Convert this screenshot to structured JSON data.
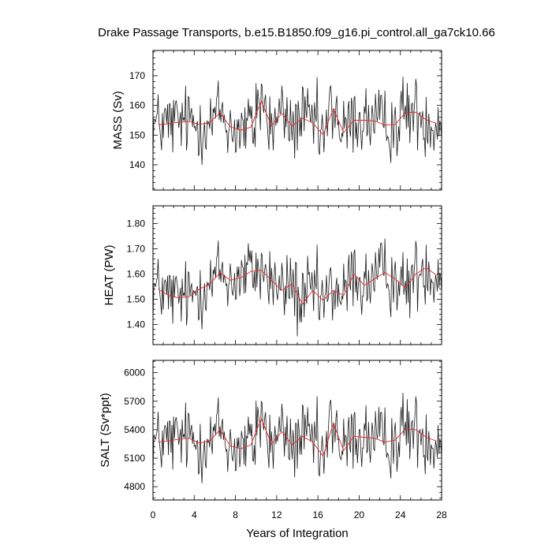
{
  "chart_data": {
    "type": "line",
    "title": "Drake Passage Transports, b.e15.B1850.f09_g16.pi_control.all_ga7ck10.66",
    "xlabel": "Years of Integration",
    "xlim": [
      0,
      28
    ],
    "xticks": [
      0,
      4,
      8,
      12,
      16,
      20,
      24,
      28
    ],
    "panels": [
      {
        "ylabel": "MASS (Sv)",
        "ylim": [
          131.5,
          178.5
        ],
        "yticks": [
          140,
          150,
          160,
          170
        ],
        "tick_labels": [
          "140",
          "150",
          "160",
          "170"
        ],
        "annual_mean": {
          "x": [
            0.5,
            1.5,
            2.5,
            3.5,
            4.5,
            5.5,
            6.5,
            7.5,
            8.5,
            9.5,
            10.5,
            11.5,
            12.5,
            13.5,
            14.5,
            15.5,
            16.5,
            17.5,
            18.5,
            19.5,
            20.5,
            21.5,
            22.5,
            23.5,
            24.5,
            25.5,
            26.5,
            27.5
          ],
          "values": [
            153.5,
            153.8,
            154.3,
            154.6,
            153.6,
            154.2,
            157.5,
            152.8,
            151.6,
            152.7,
            161.5,
            153.2,
            157.3,
            153.0,
            155.7,
            154.1,
            150.1,
            158.9,
            150.8,
            155.0,
            155.0,
            154.8,
            153.4,
            153.6,
            157.6,
            157.7,
            155.1,
            154.0
          ]
        }
      },
      {
        "ylabel": "HEAT (PW)",
        "ylim": [
          1.32,
          1.87
        ],
        "yticks": [
          1.4,
          1.5,
          1.6,
          1.7,
          1.8
        ],
        "tick_labels": [
          "1.40",
          "1.50",
          "1.60",
          "1.70",
          "1.80"
        ],
        "annual_mean": {
          "x": [
            0.5,
            1.5,
            2.5,
            3.5,
            4.5,
            5.5,
            6.5,
            7.5,
            8.5,
            9.5,
            10.5,
            11.5,
            12.5,
            13.5,
            14.5,
            15.5,
            16.5,
            17.5,
            18.5,
            19.5,
            20.5,
            21.5,
            22.5,
            23.5,
            24.5,
            25.5,
            26.5,
            27.5
          ],
          "values": [
            1.54,
            1.515,
            1.505,
            1.51,
            1.54,
            1.56,
            1.605,
            1.575,
            1.585,
            1.61,
            1.615,
            1.575,
            1.535,
            1.56,
            1.48,
            1.535,
            1.495,
            1.535,
            1.515,
            1.6,
            1.555,
            1.58,
            1.605,
            1.58,
            1.545,
            1.6,
            1.625,
            1.595
          ]
        }
      },
      {
        "ylabel": "SALT (Sv*ppt)",
        "ylim": [
          4660,
          6130
        ],
        "yticks": [
          4800,
          5100,
          5400,
          5700,
          6000
        ],
        "tick_labels": [
          "4800",
          "5100",
          "5400",
          "5700",
          "6000"
        ],
        "annual_mean": {
          "x": [
            0.5,
            1.5,
            2.5,
            3.5,
            4.5,
            5.5,
            6.5,
            7.5,
            8.5,
            9.5,
            10.5,
            11.5,
            12.5,
            13.5,
            14.5,
            15.5,
            16.5,
            17.5,
            18.5,
            19.5,
            20.5,
            21.5,
            22.5,
            23.5,
            24.5,
            25.5,
            26.5,
            27.5
          ],
          "values": [
            5270,
            5280,
            5300,
            5310,
            5260,
            5280,
            5400,
            5230,
            5200,
            5240,
            5520,
            5250,
            5380,
            5240,
            5330,
            5270,
            5120,
            5470,
            5180,
            5330,
            5320,
            5310,
            5270,
            5290,
            5410,
            5400,
            5320,
            5280
          ]
        }
      }
    ]
  }
}
